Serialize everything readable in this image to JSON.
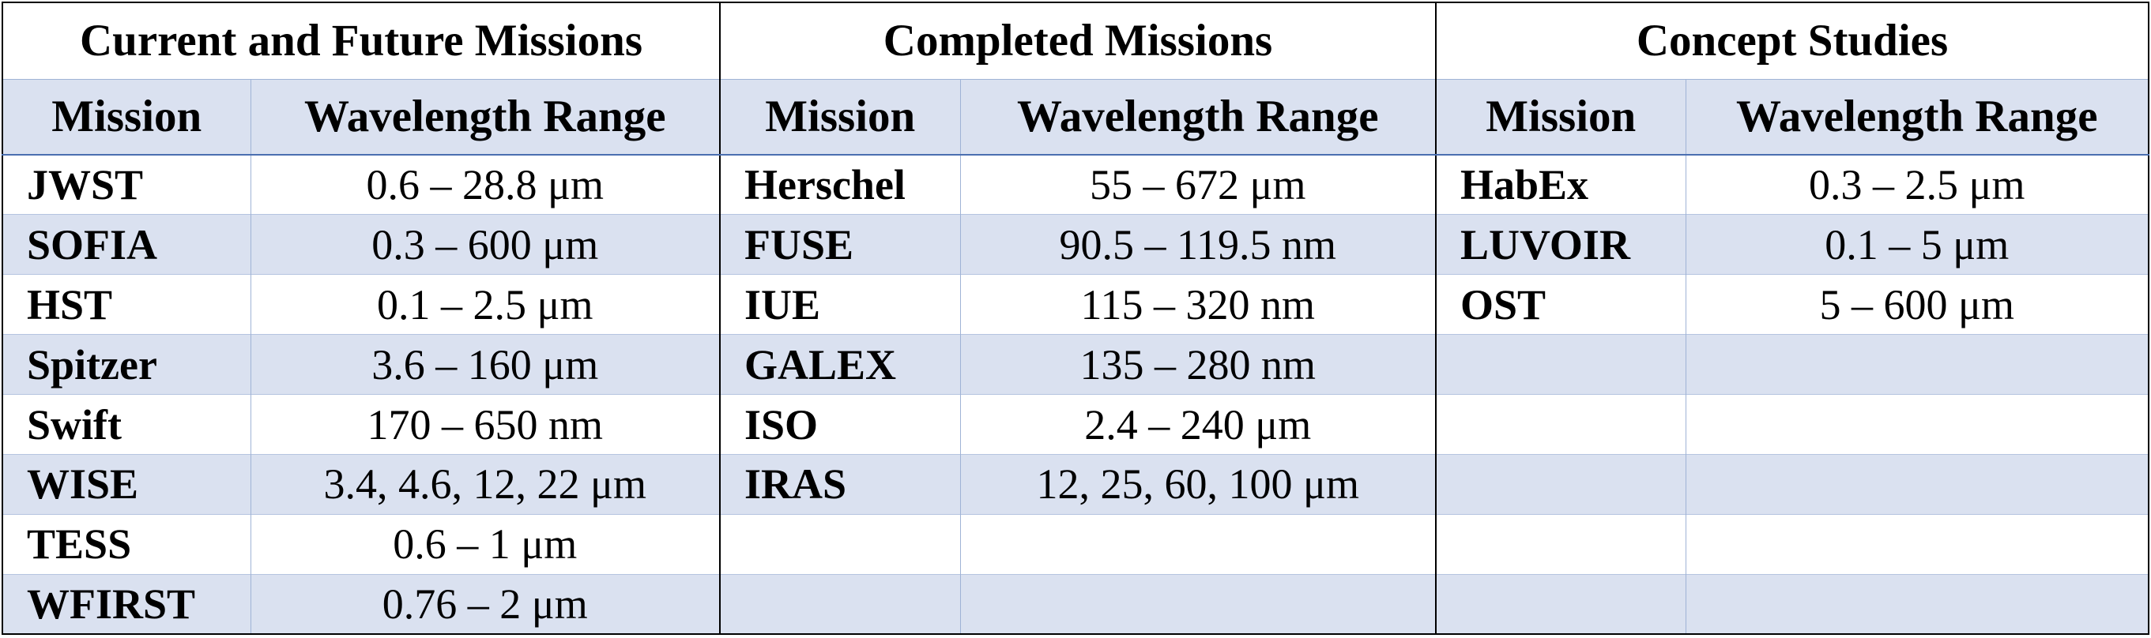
{
  "groups": [
    {
      "title": "Current and Future Missions",
      "mission_header": "Mission",
      "range_header": "Wavelength Range",
      "rows": [
        {
          "mission": "JWST",
          "range": "0.6 – 28.8 μm"
        },
        {
          "mission": "SOFIA",
          "range": "0.3 – 600 μm"
        },
        {
          "mission": "HST",
          "range": "0.1 – 2.5 μm"
        },
        {
          "mission": "Spitzer",
          "range": "3.6 – 160 μm"
        },
        {
          "mission": "Swift",
          "range": "170 – 650 nm"
        },
        {
          "mission": "WISE",
          "range": "3.4, 4.6, 12, 22 μm"
        },
        {
          "mission": "TESS",
          "range": "0.6 – 1 μm"
        },
        {
          "mission": "WFIRST",
          "range": "0.76 – 2 μm"
        }
      ]
    },
    {
      "title": "Completed Missions",
      "mission_header": "Mission",
      "range_header": "Wavelength Range",
      "rows": [
        {
          "mission": "Herschel",
          "range": "55 – 672 μm"
        },
        {
          "mission": "FUSE",
          "range": "90.5 – 119.5 nm"
        },
        {
          "mission": "IUE",
          "range": "115 – 320 nm"
        },
        {
          "mission": "GALEX",
          "range": "135 – 280 nm"
        },
        {
          "mission": "ISO",
          "range": "2.4 – 240 μm"
        },
        {
          "mission": "IRAS",
          "range": "12, 25, 60, 100 μm"
        },
        {
          "mission": "",
          "range": ""
        },
        {
          "mission": "",
          "range": ""
        }
      ]
    },
    {
      "title": "Concept Studies",
      "mission_header": "Mission",
      "range_header": "Wavelength Range",
      "rows": [
        {
          "mission": "HabEx",
          "range": "0.3 – 2.5 μm"
        },
        {
          "mission": "LUVOIR",
          "range": "0.1 – 5 μm"
        },
        {
          "mission": "OST",
          "range": "5 – 600 μm"
        },
        {
          "mission": "",
          "range": ""
        },
        {
          "mission": "",
          "range": ""
        },
        {
          "mission": "",
          "range": ""
        },
        {
          "mission": "",
          "range": ""
        },
        {
          "mission": "",
          "range": ""
        }
      ]
    }
  ],
  "colors": {
    "header_band": "#dae1f0",
    "alt_row": "#dae1f0",
    "grid_line": "#9fb3d6",
    "outer_border": "#000000"
  }
}
